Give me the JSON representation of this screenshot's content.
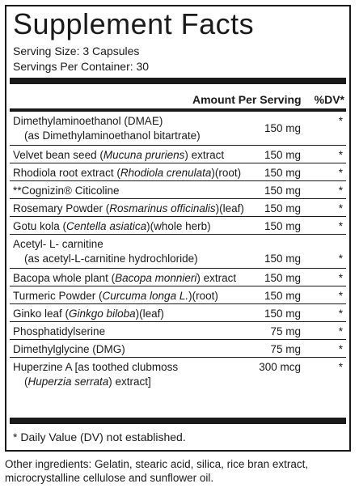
{
  "title": "Supplement Facts",
  "serving_size": "Serving Size: 3 Capsules",
  "servings_per_container": "Servings Per Container: 30",
  "header": {
    "amount": "Amount Per Serving",
    "dv": "%DV*"
  },
  "rows": [
    {
      "line1": "Dimethylaminoethanol (DMAE)",
      "line2": "(as Dimethylaminoethanol bitartrate)",
      "amount": "150 mg",
      "dv": "*"
    },
    {
      "pre": "Velvet bean seed (",
      "italic": "Mucuna pruriens",
      "post": ") extract",
      "amount": "150 mg",
      "dv": "*"
    },
    {
      "pre": "Rhodiola root extract (",
      "italic": "Rhodiola crenulata",
      "post": ")(root)",
      "amount": "150 mg",
      "dv": "*"
    },
    {
      "pre": "**Cognizin® Citicoline",
      "italic": "",
      "post": "",
      "amount": "150 mg",
      "dv": "*"
    },
    {
      "pre": "Rosemary Powder (",
      "italic": "Rosmarinus officinalis",
      "post": ")(leaf)",
      "amount": "150 mg",
      "dv": "*"
    },
    {
      "pre": "Gotu kola (",
      "italic": "Centella asiatica",
      "post": ")(whole herb)",
      "amount": "150 mg",
      "dv": "*"
    },
    {
      "line1": "Acetyl- L- carnitine",
      "line2": "(as acetyl-L-carnitine hydrochloride)",
      "amount": "150 mg",
      "dv": "*"
    },
    {
      "pre": "Bacopa whole plant (",
      "italic": "Bacopa monnieri",
      "post": ") extract",
      "amount": "150 mg",
      "dv": "*"
    },
    {
      "pre": "Turmeric Powder (",
      "italic": "Curcuma longa L.",
      "post": ")(root)",
      "amount": "150 mg",
      "dv": "*"
    },
    {
      "pre": "Ginko leaf (",
      "italic": "Ginkgo biloba",
      "post": ")(leaf)",
      "amount": "150 mg",
      "dv": "*"
    },
    {
      "pre": "Phosphatidylserine",
      "italic": "",
      "post": "",
      "amount": "75 mg",
      "dv": "*"
    },
    {
      "pre": "Dimethylglycine (DMG)",
      "italic": "",
      "post": "",
      "amount": "75 mg",
      "dv": "*"
    },
    {
      "line1": "Huperzine A [as toothed clubmoss",
      "line2_pre": "(",
      "line2_italic": "Huperzia serrata",
      "line2_post": ") extract]",
      "amount": "300 mcg",
      "dv": "*"
    }
  ],
  "footnote": "* Daily Value (DV) not established.",
  "other_ingredients_line1": "Other ingredients: Gelatin, stearic acid, silica, rice bran extract,",
  "other_ingredients_line2": "microcrystalline cellulose and sunflower oil."
}
